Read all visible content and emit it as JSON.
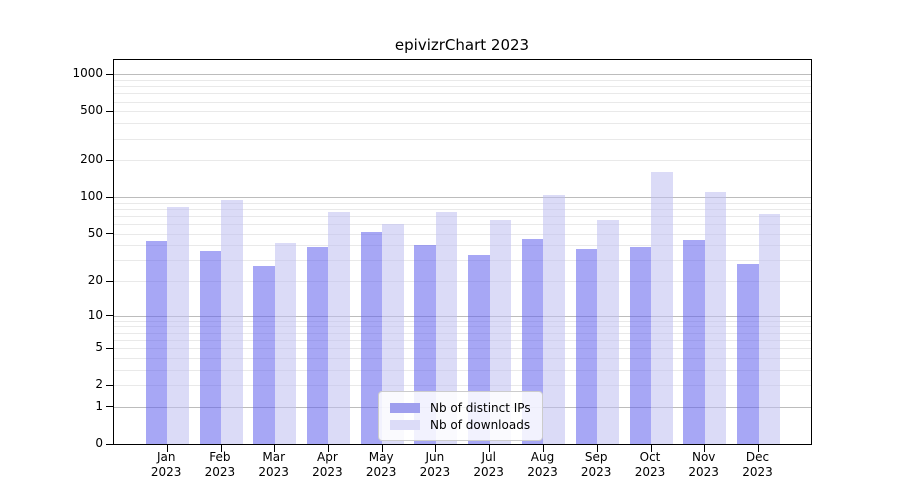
{
  "title": "epivizrChart 2023",
  "chart_data": {
    "type": "bar",
    "title": "epivizrChart 2023",
    "categories": [
      "Jan 2023",
      "Feb 2023",
      "Mar 2023",
      "Apr 2023",
      "May 2023",
      "Jun 2023",
      "Jul 2023",
      "Aug 2023",
      "Sep 2023",
      "Oct 2023",
      "Nov 2023",
      "Dec 2023"
    ],
    "x_tick_line1": [
      "Jan",
      "Feb",
      "Mar",
      "Apr",
      "May",
      "Jun",
      "Jul",
      "Aug",
      "Sep",
      "Oct",
      "Nov",
      "Dec"
    ],
    "x_tick_line2": "2023",
    "series": [
      {
        "name": "Nb of distinct IPs",
        "bar_color": "rgba(95,95,237,0.55)",
        "legend_color": "#9f9fee",
        "values": [
          43,
          36,
          27,
          39,
          52,
          40,
          33,
          45,
          37,
          39,
          44,
          28
        ]
      },
      {
        "name": "Nb of downloads",
        "bar_color": "rgba(190,190,240,0.55)",
        "legend_color": "#dcdcf8",
        "values": [
          83,
          95,
          42,
          76,
          60,
          76,
          65,
          103,
          65,
          160,
          110,
          72
        ]
      }
    ],
    "xlabel": "",
    "ylabel": "",
    "yscale": "log1p",
    "ylim": [
      0,
      1000
    ],
    "ytick_values": [
      0,
      1,
      2,
      5,
      10,
      20,
      50,
      100,
      200,
      500,
      1000
    ],
    "ytick_labels": [
      "0",
      "1",
      "2",
      "5",
      "10",
      "20",
      "50",
      "100",
      "200",
      "500",
      "1000"
    ],
    "major_gridline_values": [
      1,
      10,
      100,
      1000
    ],
    "minor_gridline_values": [
      2,
      3,
      4,
      5,
      6,
      7,
      8,
      9,
      20,
      30,
      40,
      50,
      60,
      70,
      80,
      90,
      200,
      300,
      400,
      500,
      600,
      700,
      800,
      900
    ],
    "grid": true,
    "legend_position": "lower center",
    "colors": {
      "major_grid": "#bcbcbc",
      "minor_grid": "#e9e9e9",
      "axis": "#000000",
      "background": "#ffffff"
    }
  }
}
